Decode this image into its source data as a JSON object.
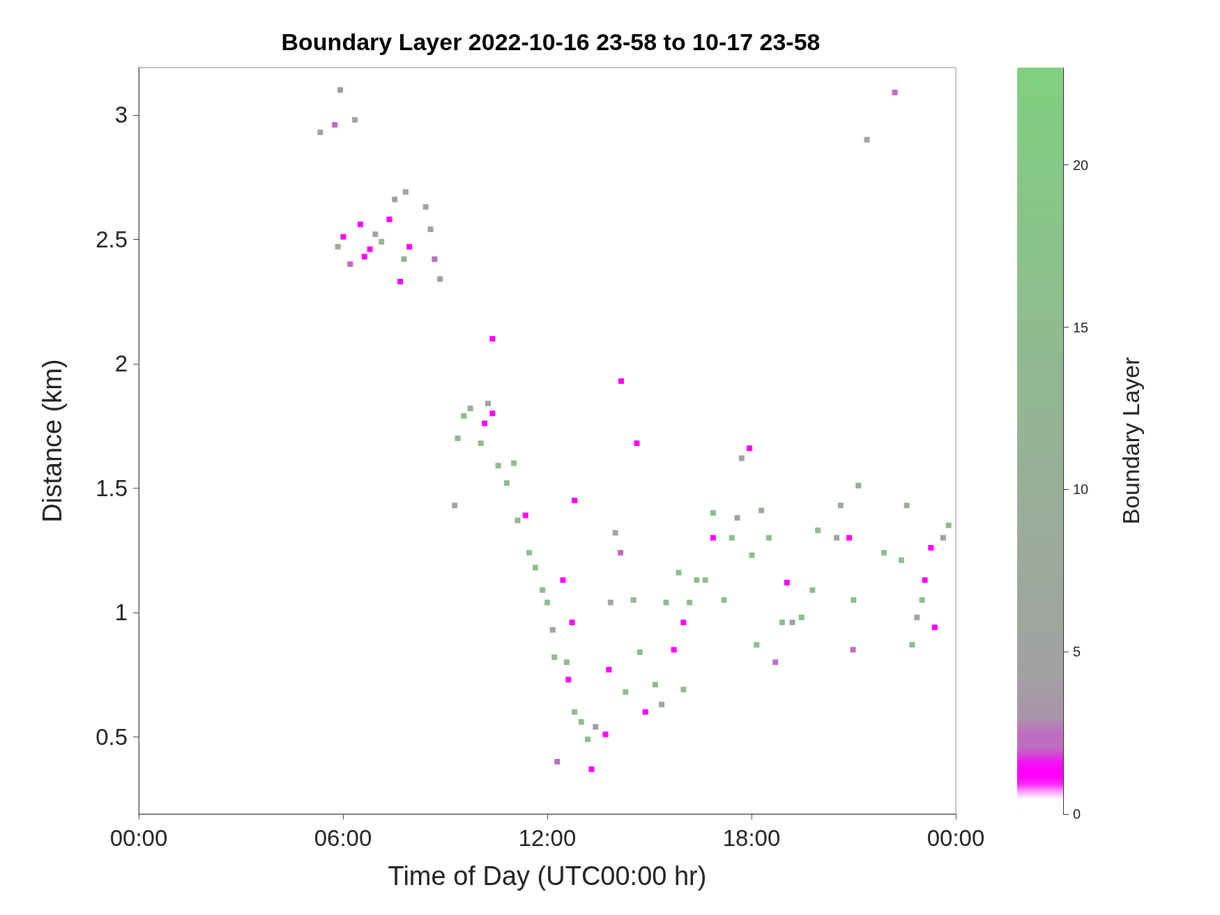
{
  "chart_data": {
    "type": "scatter",
    "title": "Boundary Layer 2022-10-16 23-58 to 10-17 23-58",
    "xlabel": "Time of Day (UTC00:00 hr)",
    "ylabel": "Distance (km)",
    "clabel": "Boundary Layer",
    "x": [
      5.33,
      5.76,
      5.92,
      6.35,
      5.85,
      6.01,
      6.21,
      6.51,
      6.63,
      6.79,
      6.95,
      7.13,
      7.36,
      7.52,
      7.84,
      7.68,
      7.79,
      7.95,
      8.43,
      8.57,
      8.69,
      8.85,
      9.28,
      9.37,
      9.55,
      9.74,
      10.05,
      10.16,
      10.26,
      10.39,
      10.39,
      10.56,
      10.81,
      11.02,
      11.13,
      11.36,
      11.47,
      11.65,
      11.86,
      12.0,
      12.16,
      12.21,
      12.46,
      12.57,
      12.62,
      12.8,
      12.73,
      12.8,
      12.29,
      13.0,
      13.19,
      13.3,
      13.42,
      13.71,
      13.81,
      13.86,
      14.0,
      14.15,
      14.17,
      14.3,
      14.53,
      14.63,
      14.72,
      14.88,
      15.17,
      15.36,
      15.49,
      15.72,
      15.86,
      16.0,
      16.0,
      16.18,
      16.39,
      16.64,
      16.87,
      16.87,
      17.19,
      17.42,
      17.58,
      17.71,
      17.94,
      18.01,
      18.15,
      18.29,
      18.51,
      18.7,
      18.9,
      19.04,
      19.2,
      19.47,
      19.79,
      19.95,
      20.5,
      20.62,
      20.87,
      20.98,
      21.0,
      21.14,
      21.39,
      21.89,
      22.21,
      22.4,
      22.56,
      22.72,
      22.86,
      23.01,
      23.09,
      23.27,
      23.38,
      23.63,
      23.79
    ],
    "values": [
      2.93,
      2.96,
      3.1,
      2.98,
      2.47,
      2.51,
      2.4,
      2.56,
      2.43,
      2.46,
      2.52,
      2.49,
      2.58,
      2.66,
      2.69,
      2.33,
      2.42,
      2.47,
      2.63,
      2.54,
      2.42,
      2.34,
      1.43,
      1.7,
      1.79,
      1.82,
      1.68,
      1.76,
      1.84,
      1.8,
      2.1,
      1.59,
      1.52,
      1.6,
      1.37,
      1.39,
      1.24,
      1.18,
      1.09,
      1.04,
      0.93,
      0.82,
      1.13,
      0.8,
      0.73,
      1.45,
      0.96,
      0.6,
      0.4,
      0.56,
      0.49,
      0.37,
      0.54,
      0.51,
      0.77,
      1.04,
      1.32,
      1.24,
      1.93,
      0.68,
      1.05,
      1.68,
      0.84,
      0.6,
      0.71,
      0.63,
      1.04,
      0.85,
      1.16,
      0.69,
      0.96,
      1.04,
      1.13,
      1.13,
      1.4,
      1.3,
      1.05,
      1.3,
      1.38,
      1.62,
      1.66,
      1.23,
      0.87,
      1.41,
      1.3,
      0.8,
      0.96,
      1.12,
      0.96,
      0.98,
      1.09,
      1.33,
      1.3,
      1.43,
      1.3,
      0.85,
      1.05,
      1.51,
      2.9,
      1.24,
      3.09,
      1.21,
      1.43,
      0.87,
      0.98,
      1.05,
      1.13,
      1.26,
      0.94,
      1.3,
      1.35
    ],
    "cvalues": [
      5,
      2.5,
      3,
      5,
      8,
      1.5,
      2.5,
      1.5,
      1.5,
      1.5,
      5,
      12,
      1.5,
      5,
      5,
      1.5,
      10,
      1.5,
      5,
      5,
      2.5,
      6,
      6,
      12,
      14,
      9,
      15,
      1.5,
      6,
      1.5,
      1.5,
      15,
      15,
      15,
      15,
      1.5,
      15,
      15,
      15,
      15,
      5,
      15,
      1.5,
      15,
      1.5,
      1.5,
      1.5,
      15,
      2.5,
      15,
      15,
      1.5,
      5,
      1.5,
      1.5,
      5,
      5,
      2.5,
      1.5,
      15,
      15,
      1.5,
      15,
      1.5,
      15,
      8,
      15,
      1.5,
      15,
      15,
      1.5,
      15,
      15,
      15,
      15,
      1.5,
      15,
      15,
      5,
      5,
      1.5,
      15,
      15,
      8,
      15,
      2.5,
      15,
      1.5,
      5,
      15,
      15,
      15,
      5,
      8,
      1.5,
      2.5,
      15,
      8,
      5,
      15,
      2.5,
      15,
      8,
      15,
      5,
      15,
      1.5,
      1.5,
      1.5,
      5,
      15
    ],
    "xlim": [
      0,
      24
    ],
    "xticks": [
      {
        "value": 0,
        "label": "00:00"
      },
      {
        "value": 6,
        "label": "06:00"
      },
      {
        "value": 12,
        "label": "12:00"
      },
      {
        "value": 18,
        "label": "18:00"
      },
      {
        "value": 24,
        "label": "00:00"
      }
    ],
    "ylim": [
      0.19,
      3.19
    ],
    "yticks": [
      0.5,
      1,
      1.5,
      2,
      2.5,
      3
    ],
    "clim": [
      0,
      23
    ],
    "cticks": [
      0,
      5,
      10,
      15,
      20
    ],
    "grid": false,
    "marker": "square"
  }
}
